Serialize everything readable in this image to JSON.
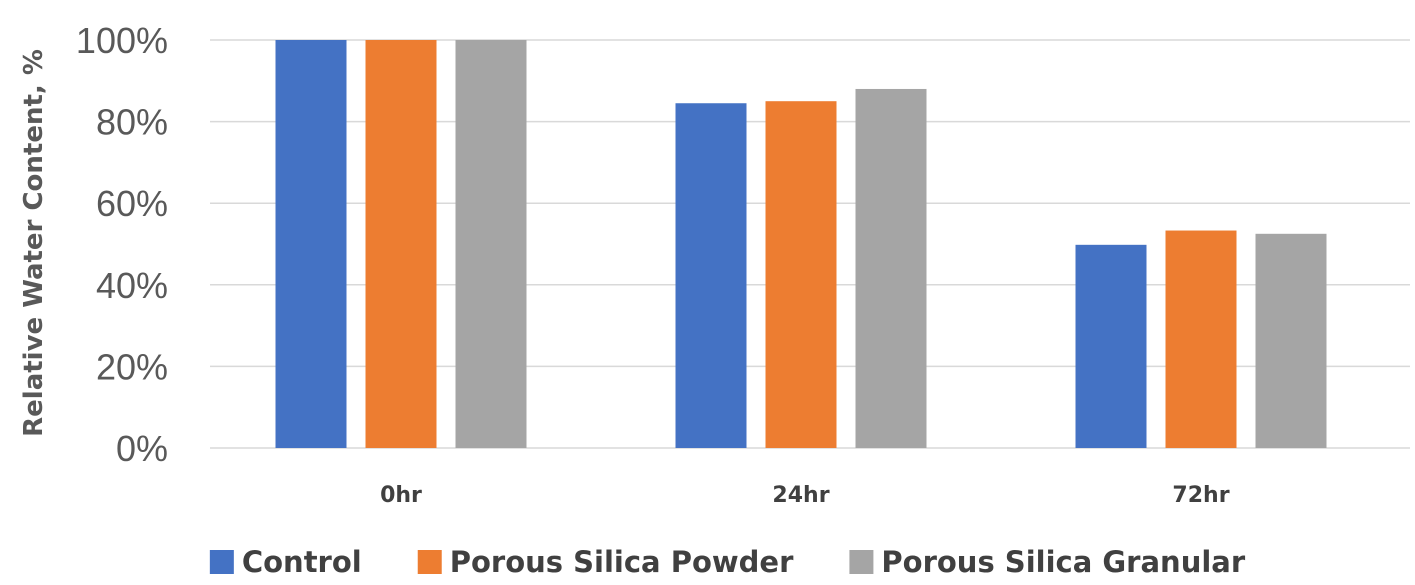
{
  "chart_data": {
    "type": "bar",
    "title": "",
    "xlabel": "",
    "ylabel": "Relative Water Content, %",
    "categories": [
      "0hr",
      "24hr",
      "72hr"
    ],
    "series": [
      {
        "name": "Control",
        "color": "#4472C4",
        "values": [
          100,
          84.5,
          49.8
        ]
      },
      {
        "name": "Porous Silica Powder",
        "color": "#ED7D31",
        "values": [
          100,
          85.0,
          53.3
        ]
      },
      {
        "name": "Porous Silica Granular",
        "color": "#A5A5A5",
        "values": [
          100,
          88.0,
          52.5
        ]
      }
    ],
    "ylim": [
      0,
      100
    ],
    "yticks": [
      0,
      20,
      40,
      60,
      80,
      100
    ],
    "ytick_labels": [
      "0%",
      "20%",
      "40%",
      "60%",
      "80%",
      "100%"
    ],
    "grid": true,
    "legend_position": "bottom"
  }
}
